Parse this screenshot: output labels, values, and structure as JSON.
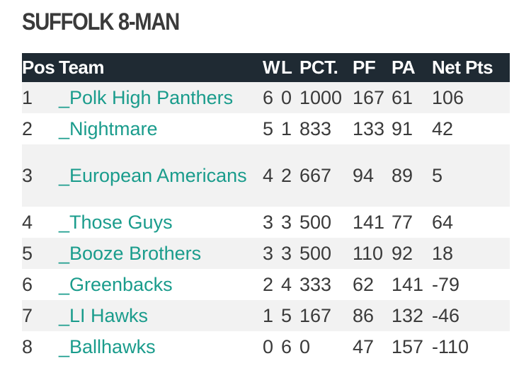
{
  "title": "SUFFOLK 8-MAN",
  "headers": {
    "pos": "Pos",
    "team": "Team",
    "w": "W",
    "l": "L",
    "pct": "PCT.",
    "pf": "PF",
    "pa": "PA",
    "net": "Net Pts"
  },
  "rows": [
    {
      "pos": "1",
      "team": "_Polk High Panthers",
      "w": "6",
      "l": "0",
      "pct": "1000",
      "pf": "167",
      "pa": "61",
      "net": "106"
    },
    {
      "pos": "2",
      "team": "_Nightmare",
      "w": "5",
      "l": "1",
      "pct": "833",
      "pf": "133",
      "pa": "91",
      "net": "42"
    },
    {
      "pos": "3",
      "team": "_European Americans",
      "w": "4",
      "l": "2",
      "pct": "667",
      "pf": "94",
      "pa": "89",
      "net": "5"
    },
    {
      "pos": "4",
      "team": "_Those Guys",
      "w": "3",
      "l": "3",
      "pct": "500",
      "pf": "141",
      "pa": "77",
      "net": "64"
    },
    {
      "pos": "5",
      "team": "_Booze Brothers",
      "w": "3",
      "l": "3",
      "pct": "500",
      "pf": "110",
      "pa": "92",
      "net": "18"
    },
    {
      "pos": "6",
      "team": "_Greenbacks",
      "w": "2",
      "l": "4",
      "pct": "333",
      "pf": "62",
      "pa": "141",
      "net": "-79"
    },
    {
      "pos": "7",
      "team": "_LI Hawks",
      "w": "1",
      "l": "5",
      "pct": "167",
      "pf": "86",
      "pa": "132",
      "net": "-46"
    },
    {
      "pos": "8",
      "team": "_Ballhawks",
      "w": "0",
      "l": "6",
      "pct": "0",
      "pf": "47",
      "pa": "157",
      "net": "-110"
    }
  ]
}
